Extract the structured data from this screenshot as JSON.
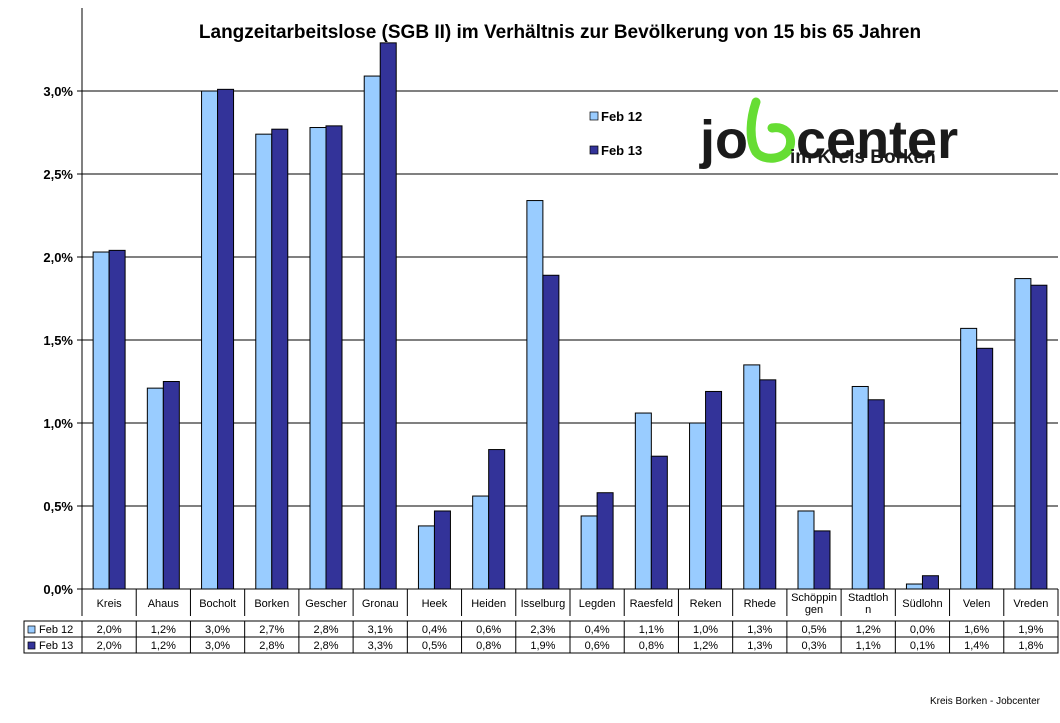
{
  "chart_data": {
    "type": "bar",
    "title": "Langzeitarbeitslose (SGB II) im Verhältnis zur Bevölkerung von 15 bis 65 Jahren",
    "categories": [
      [
        "Kreis"
      ],
      [
        "Ahaus"
      ],
      [
        "Bocholt"
      ],
      [
        "Borken"
      ],
      [
        "Gescher"
      ],
      [
        "Gronau"
      ],
      [
        "Heek"
      ],
      [
        "Heiden"
      ],
      [
        "Isselburg"
      ],
      [
        "Legden"
      ],
      [
        "Raesfeld"
      ],
      [
        "Reken"
      ],
      [
        "Rhede"
      ],
      [
        "Schöppin",
        "gen"
      ],
      [
        "Stadtloh",
        "n"
      ],
      [
        "Südlohn"
      ],
      [
        "Velen"
      ],
      [
        "Vreden"
      ]
    ],
    "series": [
      {
        "name": "Feb 12",
        "color": "#99CCFF",
        "values": [
          2.03,
          1.21,
          3.0,
          2.74,
          2.78,
          3.09,
          0.38,
          0.56,
          2.34,
          0.44,
          1.06,
          1.0,
          1.35,
          0.47,
          1.22,
          0.03,
          1.57,
          1.87
        ],
        "labels": [
          "2,0%",
          "1,2%",
          "3,0%",
          "2,7%",
          "2,8%",
          "3,1%",
          "0,4%",
          "0,6%",
          "2,3%",
          "0,4%",
          "1,1%",
          "1,0%",
          "1,3%",
          "0,5%",
          "1,2%",
          "0,0%",
          "1,6%",
          "1,9%"
        ]
      },
      {
        "name": "Feb 13",
        "color": "#333399",
        "values": [
          2.04,
          1.25,
          3.01,
          2.77,
          2.79,
          3.29,
          0.47,
          0.84,
          1.89,
          0.58,
          0.8,
          1.19,
          1.26,
          0.35,
          1.14,
          0.08,
          1.45,
          1.83
        ],
        "labels": [
          "2,0%",
          "1,2%",
          "3,0%",
          "2,8%",
          "2,8%",
          "3,3%",
          "0,5%",
          "0,8%",
          "1,9%",
          "0,6%",
          "0,8%",
          "1,2%",
          "1,3%",
          "0,3%",
          "1,1%",
          "0,1%",
          "1,4%",
          "1,8%"
        ]
      }
    ],
    "ylim": [
      0,
      3.3
    ],
    "yticks": [
      0,
      0.5,
      1.0,
      1.5,
      2.0,
      2.5,
      3.0
    ],
    "ytick_labels": [
      "0,0%",
      "0,5%",
      "1,0%",
      "1,5%",
      "2,0%",
      "2,5%",
      "3,0%"
    ],
    "grid": true,
    "legend_position": "top-center",
    "data_table": true
  },
  "logo": {
    "word_part1": "jo",
    "word_part2": "center",
    "subtitle": "im Kreis Borken",
    "green": "#66DD33"
  },
  "footer": "Kreis Borken - Jobcenter"
}
